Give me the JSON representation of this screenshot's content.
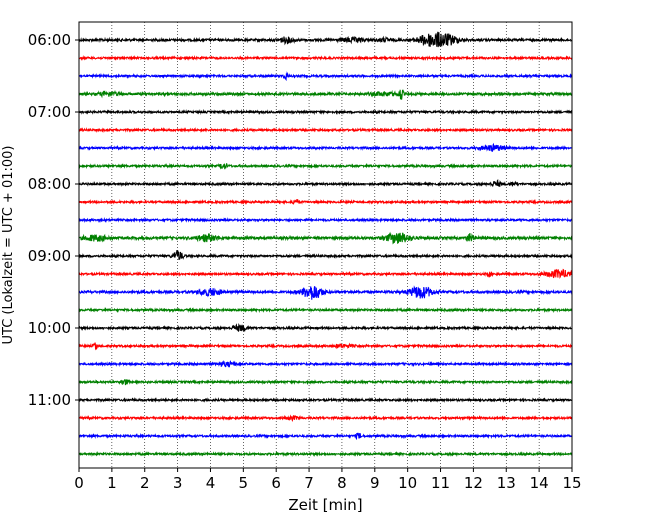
{
  "chart_data": {
    "type": "line",
    "title": "",
    "xlabel": "Zeit  [min]",
    "ylabel": "UTC (Lokalzeit = UTC + 01:00)",
    "xlim": [
      0,
      15
    ],
    "x_ticks": [
      0,
      1,
      2,
      3,
      4,
      5,
      6,
      7,
      8,
      9,
      10,
      11,
      12,
      13,
      14,
      15
    ],
    "y_tick_labels": [
      "06:00",
      "07:00",
      "08:00",
      "09:00",
      "10:00",
      "11:00"
    ],
    "trace_interval_min": 15,
    "start_time": "06:00",
    "grid": "vertical dotted at each minute",
    "colors": [
      "#000000",
      "#ff0000",
      "#0000ff",
      "#008000"
    ],
    "traces": [
      {
        "time": "06:00",
        "color": "#000000",
        "noise": 0.35,
        "events": [
          {
            "t": 6.3,
            "a": 0.8,
            "w": 0.25
          },
          {
            "t": 8.3,
            "a": 0.6,
            "w": 0.4
          },
          {
            "t": 9.3,
            "a": 0.5,
            "w": 0.2
          },
          {
            "t": 10.8,
            "a": 2.2,
            "w": 0.45
          },
          {
            "t": 11.3,
            "a": 0.9,
            "w": 0.3
          }
        ]
      },
      {
        "time": "06:15",
        "color": "#ff0000",
        "noise": 0.3,
        "events": []
      },
      {
        "time": "06:30",
        "color": "#0000ff",
        "noise": 0.3,
        "events": [
          {
            "t": 6.3,
            "a": 1.3,
            "w": 0.06
          }
        ]
      },
      {
        "time": "06:45",
        "color": "#008000",
        "noise": 0.35,
        "events": [
          {
            "t": 0.9,
            "a": 0.6,
            "w": 0.3
          },
          {
            "t": 9.8,
            "a": 1.8,
            "w": 0.06
          },
          {
            "t": 9.3,
            "a": 0.5,
            "w": 0.4
          }
        ]
      },
      {
        "time": "07:00",
        "color": "#000000",
        "noise": 0.3,
        "events": []
      },
      {
        "time": "07:15",
        "color": "#ff0000",
        "noise": 0.3,
        "events": []
      },
      {
        "time": "07:30",
        "color": "#0000ff",
        "noise": 0.3,
        "events": [
          {
            "t": 12.6,
            "a": 0.9,
            "w": 0.35
          }
        ]
      },
      {
        "time": "07:45",
        "color": "#008000",
        "noise": 0.3,
        "events": [
          {
            "t": 4.4,
            "a": 1.0,
            "w": 0.1
          }
        ]
      },
      {
        "time": "08:00",
        "color": "#000000",
        "noise": 0.3,
        "events": [
          {
            "t": 12.7,
            "a": 0.9,
            "w": 0.15
          },
          {
            "t": 13.2,
            "a": 0.6,
            "w": 0.1
          }
        ]
      },
      {
        "time": "08:15",
        "color": "#ff0000",
        "noise": 0.3,
        "events": [
          {
            "t": 6.6,
            "a": 0.8,
            "w": 0.1
          }
        ]
      },
      {
        "time": "08:30",
        "color": "#0000ff",
        "noise": 0.3,
        "events": []
      },
      {
        "time": "08:45",
        "color": "#008000",
        "noise": 0.4,
        "events": [
          {
            "t": 0.5,
            "a": 0.8,
            "w": 0.35
          },
          {
            "t": 3.9,
            "a": 1.0,
            "w": 0.3
          },
          {
            "t": 9.7,
            "a": 1.6,
            "w": 0.35
          },
          {
            "t": 11.9,
            "a": 1.2,
            "w": 0.1
          }
        ]
      },
      {
        "time": "09:00",
        "color": "#000000",
        "noise": 0.3,
        "events": [
          {
            "t": 3.0,
            "a": 1.6,
            "w": 0.15
          }
        ]
      },
      {
        "time": "09:15",
        "color": "#ff0000",
        "noise": 0.3,
        "events": [
          {
            "t": 12.5,
            "a": 0.8,
            "w": 0.06
          },
          {
            "t": 14.6,
            "a": 1.2,
            "w": 0.4
          }
        ]
      },
      {
        "time": "09:30",
        "color": "#0000ff",
        "noise": 0.35,
        "events": [
          {
            "t": 4.0,
            "a": 1.0,
            "w": 0.35
          },
          {
            "t": 7.1,
            "a": 2.2,
            "w": 0.3
          },
          {
            "t": 10.4,
            "a": 1.8,
            "w": 0.35
          }
        ]
      },
      {
        "time": "09:45",
        "color": "#008000",
        "noise": 0.3,
        "events": []
      },
      {
        "time": "10:00",
        "color": "#000000",
        "noise": 0.3,
        "events": [
          {
            "t": 4.9,
            "a": 0.9,
            "w": 0.2
          }
        ]
      },
      {
        "time": "10:15",
        "color": "#ff0000",
        "noise": 0.3,
        "events": [
          {
            "t": 0.5,
            "a": 1.3,
            "w": 0.05
          },
          {
            "t": 8.0,
            "a": 0.5,
            "w": 0.3
          }
        ]
      },
      {
        "time": "10:30",
        "color": "#0000ff",
        "noise": 0.3,
        "events": [
          {
            "t": 4.5,
            "a": 0.6,
            "w": 0.3
          }
        ]
      },
      {
        "time": "10:45",
        "color": "#008000",
        "noise": 0.3,
        "events": [
          {
            "t": 1.4,
            "a": 0.8,
            "w": 0.1
          }
        ]
      },
      {
        "time": "11:00",
        "color": "#000000",
        "noise": 0.3,
        "events": []
      },
      {
        "time": "11:15",
        "color": "#ff0000",
        "noise": 0.3,
        "events": [
          {
            "t": 6.5,
            "a": 0.5,
            "w": 0.2
          }
        ]
      },
      {
        "time": "11:30",
        "color": "#0000ff",
        "noise": 0.3,
        "events": [
          {
            "t": 8.5,
            "a": 0.9,
            "w": 0.08
          }
        ]
      },
      {
        "time": "11:45",
        "color": "#008000",
        "noise": 0.3,
        "events": []
      }
    ]
  }
}
